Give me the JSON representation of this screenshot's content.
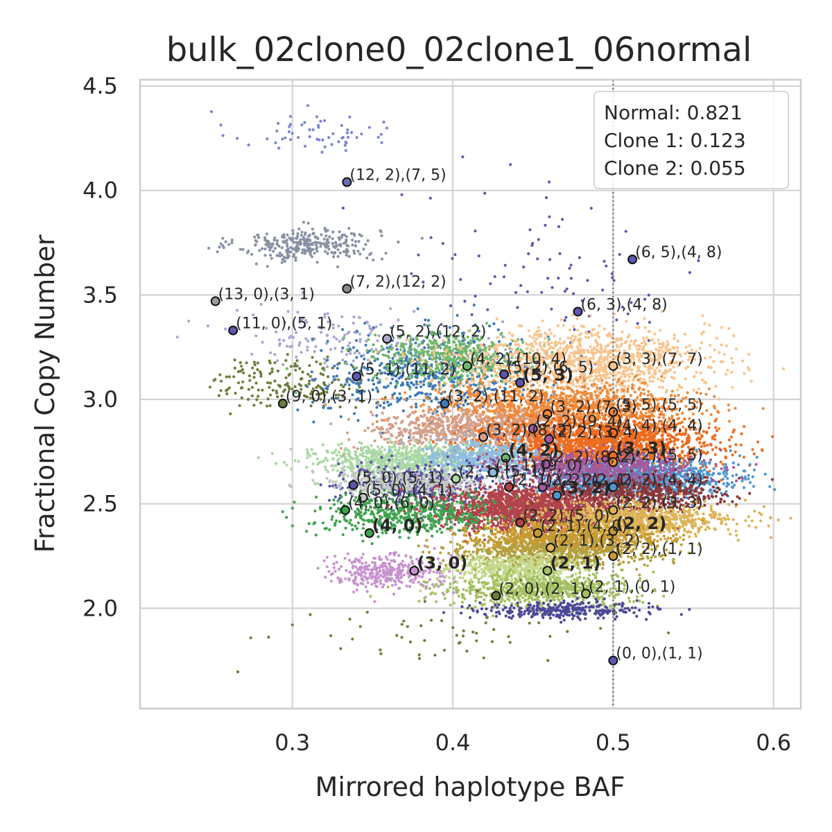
{
  "chart_data": {
    "type": "scatter",
    "title": "bulk_02clone0_02clone1_06normal",
    "xlabel": "Mirrored haplotype BAF",
    "ylabel": "Fractional Copy Number",
    "xlim": [
      0.205,
      0.617
    ],
    "ylim": [
      1.52,
      4.53
    ],
    "xticks": [
      0.3,
      0.4,
      0.5,
      0.6
    ],
    "xtick_labels": [
      "0.3",
      "0.4",
      "0.5",
      "0.6"
    ],
    "yticks": [
      2.0,
      2.5,
      3.0,
      3.5,
      4.0,
      4.5
    ],
    "ytick_labels": [
      "2.0",
      "2.5",
      "3.0",
      "3.5",
      "4.0",
      "4.5"
    ],
    "grid": true,
    "reference_line": {
      "x": 0.5,
      "style": "dotted"
    },
    "legend": {
      "placement": "top-right",
      "lines": [
        "Normal: 0.821",
        "Clone 1: 0.123",
        "Clone 2: 0.055"
      ]
    },
    "clusters": [
      {
        "cx": 0.31,
        "cy": 4.28,
        "sx": 0.025,
        "sy": 0.05,
        "n": 60,
        "color": "#7b83d1"
      },
      {
        "cx": 0.31,
        "cy": 3.74,
        "sx": 0.022,
        "sy": 0.04,
        "n": 300,
        "color": "#8790a3"
      },
      {
        "cx": 0.46,
        "cy": 3.6,
        "sx": 0.05,
        "sy": 0.2,
        "n": 90,
        "color": "#5b58b0"
      },
      {
        "cx": 0.33,
        "cy": 3.3,
        "sx": 0.035,
        "sy": 0.07,
        "n": 150,
        "color": "#a9a6d0"
      },
      {
        "cx": 0.3,
        "cy": 3.08,
        "sx": 0.025,
        "sy": 0.06,
        "n": 180,
        "color": "#6b7d3a"
      },
      {
        "cx": 0.39,
        "cy": 3.12,
        "sx": 0.035,
        "sy": 0.1,
        "n": 600,
        "color": "#3d7ab8"
      },
      {
        "cx": 0.4,
        "cy": 3.2,
        "sx": 0.025,
        "sy": 0.06,
        "n": 500,
        "color": "#6fb86a"
      },
      {
        "cx": 0.48,
        "cy": 3.18,
        "sx": 0.04,
        "sy": 0.08,
        "n": 1200,
        "color": "#f8c48d"
      },
      {
        "cx": 0.47,
        "cy": 2.95,
        "sx": 0.04,
        "sy": 0.06,
        "n": 1400,
        "color": "#f08a3a"
      },
      {
        "cx": 0.41,
        "cy": 2.85,
        "sx": 0.03,
        "sy": 0.05,
        "n": 700,
        "color": "#d2a08c"
      },
      {
        "cx": 0.49,
        "cy": 2.78,
        "sx": 0.035,
        "sy": 0.06,
        "n": 1800,
        "color": "#ee6b1f"
      },
      {
        "cx": 0.37,
        "cy": 2.71,
        "sx": 0.03,
        "sy": 0.035,
        "n": 700,
        "color": "#a9d8a2"
      },
      {
        "cx": 0.42,
        "cy": 2.72,
        "sx": 0.02,
        "sy": 0.04,
        "n": 500,
        "color": "#8dbde0"
      },
      {
        "cx": 0.51,
        "cy": 2.62,
        "sx": 0.03,
        "sy": 0.045,
        "n": 1200,
        "color": "#4e97cf"
      },
      {
        "cx": 0.49,
        "cy": 2.67,
        "sx": 0.03,
        "sy": 0.04,
        "n": 700,
        "color": "#a25a9f"
      },
      {
        "cx": 0.38,
        "cy": 2.59,
        "sx": 0.025,
        "sy": 0.05,
        "n": 500,
        "color": "#5c54a6"
      },
      {
        "cx": 0.37,
        "cy": 2.6,
        "sx": 0.025,
        "sy": 0.03,
        "n": 400,
        "color": "#c2c9c0"
      },
      {
        "cx": 0.45,
        "cy": 2.48,
        "sx": 0.03,
        "sy": 0.05,
        "n": 1800,
        "color": "#b0444a"
      },
      {
        "cx": 0.52,
        "cy": 2.55,
        "sx": 0.025,
        "sy": 0.04,
        "n": 500,
        "color": "#8a3838"
      },
      {
        "cx": 0.37,
        "cy": 2.45,
        "sx": 0.028,
        "sy": 0.05,
        "n": 500,
        "color": "#3fa24d"
      },
      {
        "cx": 0.51,
        "cy": 2.42,
        "sx": 0.03,
        "sy": 0.04,
        "n": 900,
        "color": "#dcb456"
      },
      {
        "cx": 0.47,
        "cy": 2.33,
        "sx": 0.03,
        "sy": 0.04,
        "n": 900,
        "color": "#c99a2e"
      },
      {
        "cx": 0.46,
        "cy": 2.26,
        "sx": 0.03,
        "sy": 0.035,
        "n": 600,
        "color": "#b0a040"
      },
      {
        "cx": 0.36,
        "cy": 2.17,
        "sx": 0.018,
        "sy": 0.04,
        "n": 350,
        "color": "#c792cf"
      },
      {
        "cx": 0.44,
        "cy": 2.18,
        "sx": 0.02,
        "sy": 0.04,
        "n": 500,
        "color": "#c3d98a"
      },
      {
        "cx": 0.455,
        "cy": 2.09,
        "sx": 0.03,
        "sy": 0.04,
        "n": 700,
        "color": "#a3c060"
      },
      {
        "cx": 0.47,
        "cy": 1.99,
        "sx": 0.025,
        "sy": 0.02,
        "n": 300,
        "color": "#4a4896"
      },
      {
        "cx": 0.4,
        "cy": 1.9,
        "sx": 0.05,
        "sy": 0.08,
        "n": 60,
        "color": "#6b7d3a"
      }
    ],
    "annotations": [
      {
        "x": 0.334,
        "y": 4.04,
        "text": "(12, 2),(7, 5)",
        "bold": false,
        "fill": "#6a6cb5"
      },
      {
        "x": 0.512,
        "y": 3.67,
        "text": "(6, 5),(4, 8)",
        "bold": false,
        "fill": "#5b58b0"
      },
      {
        "x": 0.334,
        "y": 3.53,
        "text": "(7, 2),(12, 2)",
        "bold": false,
        "fill": "#8a8a8a"
      },
      {
        "x": 0.252,
        "y": 3.47,
        "text": "(13, 0),(3, 1)",
        "bold": false,
        "fill": "#9a9a9a"
      },
      {
        "x": 0.478,
        "y": 3.42,
        "text": "(6, 3),(4, 8)",
        "bold": false,
        "fill": "#5b58b0"
      },
      {
        "x": 0.263,
        "y": 3.33,
        "text": "(11, 0),(5, 1)",
        "bold": false,
        "fill": "#5b58b0"
      },
      {
        "x": 0.359,
        "y": 3.29,
        "text": "(5, 2),(12, 2)",
        "bold": false,
        "fill": "#b0aed0"
      },
      {
        "x": 0.409,
        "y": 3.16,
        "text": "(4, 2),(10, 4)",
        "bold": false,
        "fill": "#6fb86a"
      },
      {
        "x": 0.5,
        "y": 3.16,
        "text": "(3, 3),(7, 7)",
        "bold": false,
        "fill": "#f8c48d"
      },
      {
        "x": 0.432,
        "y": 3.12,
        "text": "(5, 2),(6, 5)",
        "bold": false,
        "fill": "#5c54a6"
      },
      {
        "x": 0.34,
        "y": 3.11,
        "text": "(5, 1),(11, 2)",
        "bold": false,
        "fill": "#5b58b0"
      },
      {
        "x": 0.442,
        "y": 3.08,
        "text": "(5, 3)",
        "bold": true,
        "fill": "#5c54a6"
      },
      {
        "x": 0.395,
        "y": 2.98,
        "text": "(3, 2),(11, 2)",
        "bold": false,
        "fill": "#3d7ab8"
      },
      {
        "x": 0.294,
        "y": 2.98,
        "text": "(9, 0),(3, 1)",
        "bold": false,
        "fill": "#6b7d3a"
      },
      {
        "x": 0.5,
        "y": 2.94,
        "text": "(5, 5),(5, 5)",
        "bold": false,
        "fill": "#f08a3a"
      },
      {
        "x": 0.459,
        "y": 2.93,
        "text": "(3, 2),(7, 3)",
        "bold": false,
        "fill": "#f08a3a"
      },
      {
        "x": 0.45,
        "y": 2.86,
        "text": "(2, 2),(9, 4)",
        "bold": false,
        "fill": "#a25a9f"
      },
      {
        "x": 0.5,
        "y": 2.84,
        "text": "(4, 4),(4, 4)",
        "bold": false,
        "fill": "#ee6b1f"
      },
      {
        "x": 0.419,
        "y": 2.82,
        "text": "(3, 2),(8, 2)",
        "bold": false,
        "fill": "#d2a08c"
      },
      {
        "x": 0.46,
        "y": 2.81,
        "text": "(2, 2),(3, 4)",
        "bold": false,
        "fill": "#a25a9f"
      },
      {
        "x": 0.433,
        "y": 2.72,
        "text": "(4, 2)",
        "bold": true,
        "fill": "#6fb86a"
      },
      {
        "x": 0.5,
        "y": 2.73,
        "text": "(3, 3)",
        "bold": true,
        "fill": "#ee6b1f"
      },
      {
        "x": 0.5,
        "y": 2.7,
        "text": "(2, 2),(5, 5)",
        "bold": false,
        "fill": "#f08a3a"
      },
      {
        "x": 0.458,
        "y": 2.69,
        "text": "(2, 2),(8, 2)",
        "bold": false,
        "fill": "#a25a9f"
      },
      {
        "x": 0.425,
        "y": 2.65,
        "text": "(1, 1),(9, 0)",
        "bold": false,
        "fill": "#8dbde0"
      },
      {
        "x": 0.402,
        "y": 2.62,
        "text": "(2, 1),(5, 1)",
        "bold": false,
        "fill": "#a9d8a2"
      },
      {
        "x": 0.338,
        "y": 2.59,
        "text": "(5, 0),(5, 1)",
        "bold": false,
        "fill": "#5c54a6"
      },
      {
        "x": 0.456,
        "y": 2.58,
        "text": "(2, 2),(2, 1)",
        "bold": false,
        "fill": "#a25a9f"
      },
      {
        "x": 0.5,
        "y": 2.58,
        "text": "(2, 2),(4, 4)",
        "bold": false,
        "fill": "#4e97cf"
      },
      {
        "x": 0.435,
        "y": 2.58,
        "text": "(2, 1),(2, 2)",
        "bold": false,
        "fill": "#b0444a"
      },
      {
        "x": 0.344,
        "y": 2.53,
        "text": "(5, 0),(4, 1)",
        "bold": false,
        "fill": "#c2c9c0"
      },
      {
        "x": 0.465,
        "y": 2.54,
        "text": "(3, 2)",
        "bold": true,
        "fill": "#4e97cf"
      },
      {
        "x": 0.333,
        "y": 2.47,
        "text": "(4, 0),(6, 0)",
        "bold": false,
        "fill": "#3fa24d"
      },
      {
        "x": 0.5,
        "y": 2.47,
        "text": "(2, 2),(3, 3)",
        "bold": false,
        "fill": "#dcb456"
      },
      {
        "x": 0.442,
        "y": 2.41,
        "text": "(2, 2),(5, 0)",
        "bold": false,
        "fill": "#b0444a"
      },
      {
        "x": 0.5,
        "y": 2.37,
        "text": "(2, 2)",
        "bold": true,
        "fill": "#c99a2e"
      },
      {
        "x": 0.348,
        "y": 2.36,
        "text": "(4, 0)",
        "bold": true,
        "fill": "#3fa24d"
      },
      {
        "x": 0.453,
        "y": 2.36,
        "text": "(2, 1),(4, 0)",
        "bold": false,
        "fill": "#c99a2e"
      },
      {
        "x": 0.461,
        "y": 2.29,
        "text": "(2, 1),(3, 2)",
        "bold": false,
        "fill": "#dcb456"
      },
      {
        "x": 0.5,
        "y": 2.25,
        "text": "(2, 2),(1, 1)",
        "bold": false,
        "fill": "#c99a2e"
      },
      {
        "x": 0.376,
        "y": 2.18,
        "text": "(3, 0)",
        "bold": true,
        "fill": "#c792cf"
      },
      {
        "x": 0.459,
        "y": 2.18,
        "text": "(2, 1)",
        "bold": true,
        "fill": "#a3c060"
      },
      {
        "x": 0.427,
        "y": 2.06,
        "text": "(2, 0),(2, 1)",
        "bold": false,
        "fill": "#6b7d3a"
      },
      {
        "x": 0.483,
        "y": 2.07,
        "text": "(2, 1),(0, 1)",
        "bold": false,
        "fill": "#a3c060"
      },
      {
        "x": 0.5,
        "y": 1.75,
        "text": "(0, 0),(1, 1)",
        "bold": false,
        "fill": "#5b58b0"
      }
    ]
  }
}
